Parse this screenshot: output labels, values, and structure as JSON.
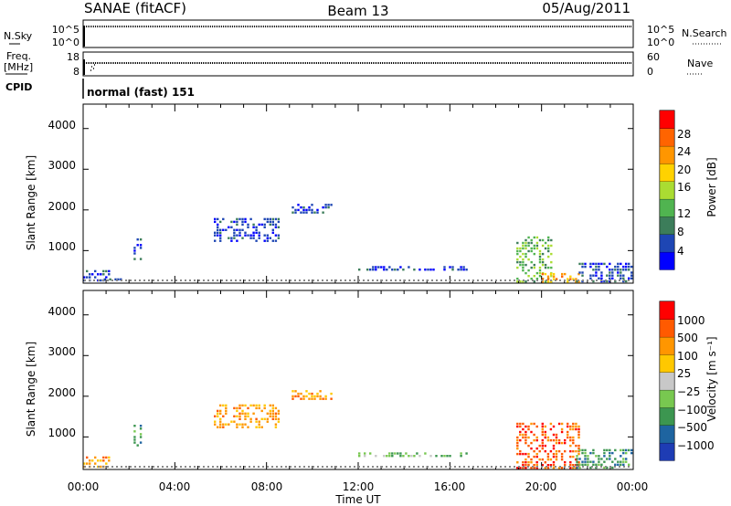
{
  "header": {
    "site": "SANAE (fitACF)",
    "beam": "Beam 13",
    "date": "05/Aug/2011"
  },
  "aux": {
    "nsky_label": "N.Sky",
    "nsky_ticks": [
      "10^5",
      "10^0"
    ],
    "nsearch_label": "N.Search",
    "nsearch_ticks": [
      "10^5",
      "10^0"
    ],
    "freq_label_1": "Freq.",
    "freq_label_2": "[MHz]",
    "freq_ticks": [
      "18",
      "8"
    ],
    "nave_label": "Nave",
    "nave_ticks": [
      "60",
      "0"
    ],
    "cpid_label": "CPID",
    "cpid_value": "normal (fast) 151"
  },
  "chart_data": [
    {
      "type": "heatmap",
      "name": "power",
      "ylabel": "Slant Range [km]",
      "yticks": [
        "4000",
        "3000",
        "2000",
        "1000"
      ],
      "ylim": [
        200,
        4600
      ],
      "xlim": [
        0,
        24
      ],
      "colorbar_label": "Power [dB]",
      "colorbar_ticks": [
        "28",
        "24",
        "20",
        "16",
        "12",
        "8",
        "4"
      ],
      "colors": [
        "#0000ff",
        "#1e46b4",
        "#3c7d5a",
        "#50b450",
        "#aadc32",
        "#ffd200",
        "#ff9600",
        "#ff6400",
        "#ff0000"
      ],
      "echo_bands": [
        {
          "t0": 0.0,
          "t1": 1.2,
          "r0": 220,
          "r1": 520,
          "level": 1
        },
        {
          "t0": 0.9,
          "t1": 2.3,
          "r0": 230,
          "r1": 320,
          "level": 1
        },
        {
          "t0": 2.2,
          "t1": 2.6,
          "r0": 750,
          "r1": 1300,
          "level": 1
        },
        {
          "t0": 5.7,
          "t1": 8.6,
          "r0": 1200,
          "r1": 1800,
          "level": 1
        },
        {
          "t0": 9.1,
          "t1": 10.9,
          "r0": 1900,
          "r1": 2150,
          "level": 1
        },
        {
          "t0": 12.0,
          "t1": 16.8,
          "r0": 500,
          "r1": 620,
          "level": 1
        },
        {
          "t0": 18.9,
          "t1": 20.5,
          "r0": 200,
          "r1": 1350,
          "level": 3
        },
        {
          "t0": 20.0,
          "t1": 21.7,
          "r0": 200,
          "r1": 450,
          "level": 6
        },
        {
          "t0": 21.5,
          "t1": 24.0,
          "r0": 200,
          "r1": 700,
          "level": 1
        }
      ]
    },
    {
      "type": "heatmap",
      "name": "velocity",
      "ylabel": "Slant Range [km]",
      "yticks": [
        "4000",
        "3000",
        "2000",
        "1000"
      ],
      "ylim": [
        200,
        4600
      ],
      "xlim": [
        0,
        24
      ],
      "xlabel": "Time UT",
      "xticks": [
        "00:00",
        "04:00",
        "08:00",
        "12:00",
        "16:00",
        "20:00",
        "00:00"
      ],
      "colorbar_label": "Velocity [m s⁻¹]",
      "colorbar_ticks": [
        "1000",
        "500",
        "100",
        "25",
        "−25",
        "−100",
        "−500",
        "−1000"
      ],
      "colors": [
        "#1e3cb4",
        "#1e64a0",
        "#3c9650",
        "#78c850",
        "#c8c8c8",
        "#ffc800",
        "#ff9600",
        "#ff5a00",
        "#ff0000"
      ],
      "echo_bands": [
        {
          "t0": 0.0,
          "t1": 1.2,
          "r0": 220,
          "r1": 520,
          "level": 6
        },
        {
          "t0": 2.2,
          "t1": 2.6,
          "r0": 750,
          "r1": 1300,
          "level": 2
        },
        {
          "t0": 5.7,
          "t1": 8.6,
          "r0": 1200,
          "r1": 1800,
          "level": 6
        },
        {
          "t0": 9.1,
          "t1": 10.9,
          "r0": 1900,
          "r1": 2150,
          "level": 6
        },
        {
          "t0": 12.0,
          "t1": 16.8,
          "r0": 500,
          "r1": 620,
          "level": 3
        },
        {
          "t0": 18.9,
          "t1": 21.7,
          "r0": 200,
          "r1": 1350,
          "level": 7
        },
        {
          "t0": 21.5,
          "t1": 24.0,
          "r0": 200,
          "r1": 700,
          "level": 2
        }
      ]
    }
  ]
}
